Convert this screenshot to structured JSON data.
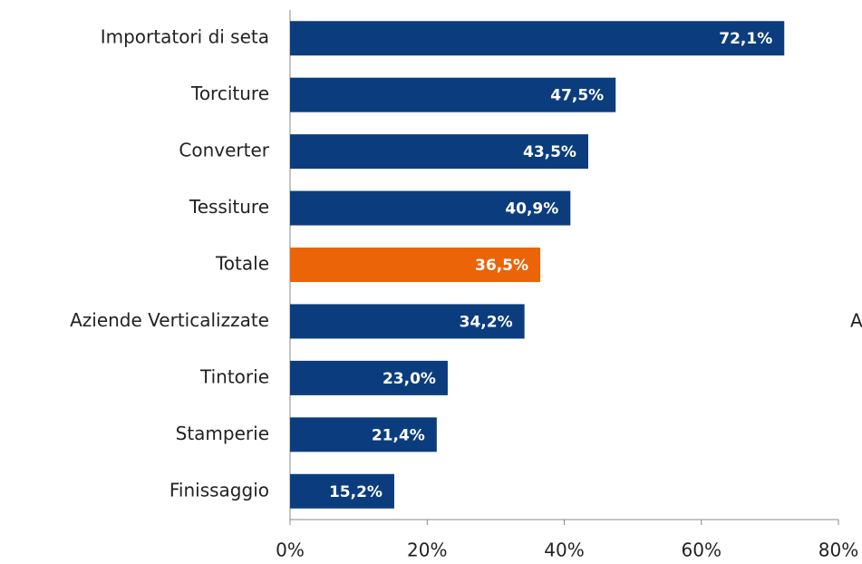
{
  "chart_data": {
    "type": "hbar",
    "categories": [
      "Importatori di seta",
      "Torciture",
      "Converter",
      "Tessiture",
      "Totale",
      "Aziende Verticalizzate",
      "Tintorie",
      "Stamperie",
      "Finissaggio"
    ],
    "values": [
      72.1,
      47.5,
      43.5,
      40.9,
      36.5,
      34.2,
      23.0,
      21.4,
      15.2
    ],
    "value_labels": [
      "72,1%",
      "47,5%",
      "43,5%",
      "40,9%",
      "36,5%",
      "34,2%",
      "23,0%",
      "21,4%",
      "15,2%"
    ],
    "colors": [
      "#0b3d7e",
      "#0b3d7e",
      "#0b3d7e",
      "#0b3d7e",
      "#ec6408",
      "#0b3d7e",
      "#0b3d7e",
      "#0b3d7e",
      "#0b3d7e"
    ],
    "xlim": [
      0,
      80
    ],
    "xticks": [
      {
        "value": 0,
        "label": "0%"
      },
      {
        "value": 20,
        "label": "20%"
      },
      {
        "value": 40,
        "label": "40%"
      },
      {
        "value": 60,
        "label": "60%"
      },
      {
        "value": 80,
        "label": "80%"
      }
    ],
    "grid": false,
    "annotations": [
      "A"
    ]
  }
}
